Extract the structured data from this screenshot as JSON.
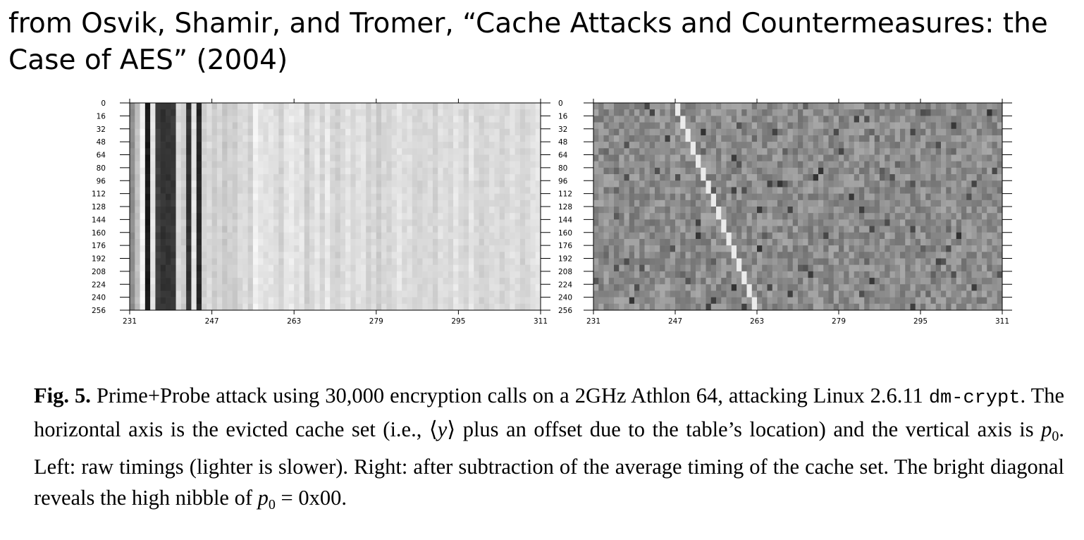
{
  "slide": {
    "title": "from Osvik, Shamir, and Tromer, “Cache Attacks and Countermeasures: the Case of AES” (2004)"
  },
  "caption": {
    "label": "Fig. 5.",
    "part1": "Prime+Probe attack using 30,000 encryption calls on a 2GHz Athlon 64, attacking Linux 2.6.11",
    "code": "dm-crypt",
    "part2": ". The horizontal axis is the evicted cache set (i.e., ⟨",
    "y_var": "y",
    "part3": "⟩ plus an offset due to the table’s location) and the vertical axis is",
    "p0_var": "p",
    "p0_sub": "0",
    "part4": ". Left: raw timings (lighter is slower). Right: after subtraction of the average timing of the cache set. The bright diagonal reveals the high nibble of",
    "p0b_var": "p",
    "p0b_sub": "0",
    "part5": "= 0x00."
  },
  "chart_data": [
    {
      "type": "heatmap",
      "panel": "left",
      "x_ticks": [
        "231",
        "247",
        "263",
        "279",
        "295",
        "311"
      ],
      "y_ticks": [
        "0",
        "16",
        "32",
        "48",
        "64",
        "80",
        "96",
        "112",
        "128",
        "144",
        "160",
        "176",
        "192",
        "208",
        "224",
        "240",
        "256"
      ],
      "xlim": [
        231,
        311
      ],
      "ylim": [
        0,
        256
      ],
      "column_brightness": [
        0.55,
        0.75,
        0.95,
        0.1,
        0.9,
        0.25,
        0.2,
        0.2,
        0.22,
        0.85,
        0.8,
        0.2,
        0.9,
        0.15,
        0.82,
        0.86,
        0.8,
        0.84,
        0.78,
        0.82,
        0.8,
        0.85,
        0.87,
        0.82,
        0.95,
        0.9,
        0.88,
        0.9,
        0.86,
        0.82,
        0.9,
        0.92,
        0.88,
        0.9,
        0.8,
        0.86,
        0.91,
        0.83,
        0.92,
        0.85,
        0.81,
        0.86,
        0.9,
        0.84,
        0.88,
        0.89,
        0.82,
        0.86,
        0.8,
        0.85,
        0.83,
        0.87,
        0.9,
        0.86,
        0.88,
        0.84,
        0.83,
        0.85,
        0.86,
        0.82,
        0.88,
        0.86,
        0.85,
        0.9,
        0.86,
        0.83,
        0.9,
        0.85,
        0.82,
        0.84,
        0.87,
        0.86,
        0.83,
        0.85,
        0.88,
        0.86,
        0.82,
        0.85,
        0.88,
        0.9
      ],
      "color_scale": "grayscale, lighter is slower"
    },
    {
      "type": "heatmap",
      "panel": "right",
      "x_ticks": [
        "231",
        "247",
        "263",
        "279",
        "295",
        "311"
      ],
      "y_ticks": [
        "0",
        "16",
        "32",
        "48",
        "64",
        "80",
        "96",
        "112",
        "128",
        "144",
        "160",
        "176",
        "192",
        "208",
        "224",
        "240",
        "256"
      ],
      "xlim": [
        231,
        311
      ],
      "ylim": [
        0,
        256
      ],
      "diagonal": {
        "start_column": 247,
        "column_step_per_16_rows": 1,
        "description": "bright cells"
      },
      "background_gray": 0.55
    }
  ]
}
